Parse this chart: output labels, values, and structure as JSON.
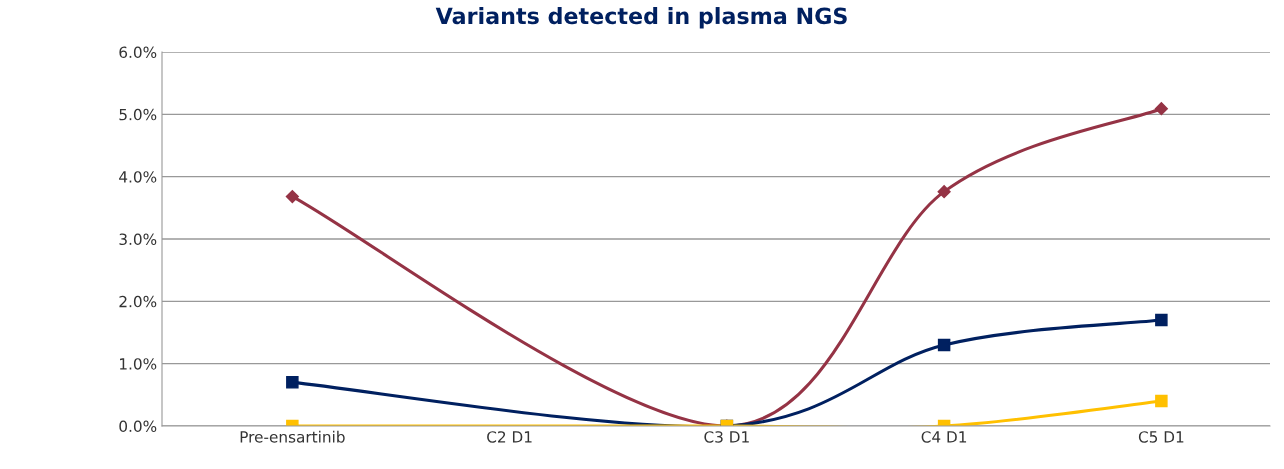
{
  "chart_data": {
    "type": "line",
    "title": "Variants detected in plasma NGS",
    "categories": [
      "Pre-ensartinib",
      "C2 D1",
      "C3 D1",
      "C4 D1",
      "C5 D1"
    ],
    "series": [
      {
        "color": "#953345",
        "marker": "diamond",
        "values": [
          3.68,
          null,
          0,
          3.76,
          5.09
        ]
      },
      {
        "color": "#002060",
        "marker": "square",
        "values": [
          0.7,
          null,
          0,
          1.3,
          1.7
        ]
      },
      {
        "color": "#ffc000",
        "marker": "square",
        "values": [
          0,
          null,
          0,
          0,
          0.4
        ]
      }
    ],
    "ylim": [
      0,
      6
    ],
    "yticks": [
      {
        "value": 0,
        "label": "0.0%"
      },
      {
        "value": 1,
        "label": "1.0%"
      },
      {
        "value": 2,
        "label": "2.0%"
      },
      {
        "value": 3,
        "label": "3.0%"
      },
      {
        "value": 4,
        "label": "4.0%"
      },
      {
        "value": 5,
        "label": "5.0%"
      },
      {
        "value": 6,
        "label": "6.0%"
      }
    ],
    "grid": "y",
    "legend": false
  }
}
